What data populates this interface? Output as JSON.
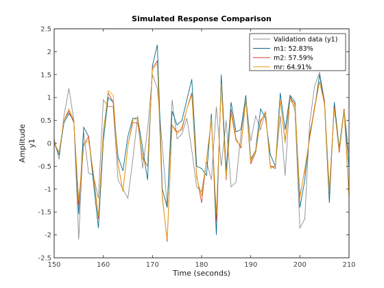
{
  "chart_data": {
    "type": "line",
    "title": "Simulated Response Comparison",
    "xlabel": "Time (seconds)",
    "ylabel": "Amplitude",
    "ylabel2": "y1",
    "xlim": [
      150,
      210
    ],
    "ylim": [
      -2.5,
      2.5
    ],
    "xticks": [
      "150",
      "160",
      "170",
      "180",
      "190",
      "200",
      "210"
    ],
    "yticks": [
      "2.5",
      "2",
      "1.5",
      "1",
      "0.5",
      "0",
      "-0.5",
      "-1",
      "-1.5",
      "-2",
      "-2.5"
    ],
    "grid": false,
    "legend_position": "top-right",
    "x": [
      150,
      151,
      152,
      153,
      154,
      155,
      156,
      157,
      158,
      159,
      160,
      161,
      162,
      163,
      164,
      165,
      166,
      167,
      168,
      169,
      170,
      171,
      172,
      173,
      174,
      175,
      176,
      177,
      178,
      179,
      180,
      181,
      182,
      183,
      184,
      185,
      186,
      187,
      188,
      189,
      190,
      191,
      192,
      193,
      194,
      195,
      196,
      197,
      198,
      199,
      200,
      201,
      202,
      203,
      204,
      205,
      206,
      207,
      208,
      209,
      210
    ],
    "series": [
      {
        "name": "Validation data (y1)",
        "color": "#8c8c8c",
        "values": [
          0.1,
          -0.35,
          0.6,
          1.2,
          0.5,
          -2.1,
          0.25,
          -0.65,
          -0.7,
          -1.2,
          0.95,
          0.8,
          0.8,
          -0.8,
          -1.0,
          -1.2,
          -0.35,
          0.6,
          -0.55,
          0.3,
          1.5,
          1.2,
          -0.05,
          -1.4,
          0.95,
          0.1,
          0.2,
          0.55,
          -0.15,
          -0.95,
          -1.05,
          -0.4,
          -0.8,
          0.8,
          -0.5,
          0.5,
          -0.95,
          -0.85,
          0.2,
          0.95,
          0.05,
          0.6,
          0.3,
          0.7,
          -0.5,
          -0.5,
          0.6,
          -0.7,
          1.05,
          0.7,
          -1.85,
          -1.65,
          0.45,
          1.25,
          1.55,
          0.95,
          -1.0,
          0.85,
          -0.2,
          0.7,
          -0.25
        ]
      },
      {
        "name": "m1: 52.83%",
        "color": "#00698c",
        "values": [
          0.0,
          -0.25,
          0.45,
          0.65,
          0.5,
          -1.55,
          0.35,
          0.15,
          -0.85,
          -1.85,
          0.05,
          1.0,
          0.9,
          -0.3,
          -0.6,
          0.15,
          0.55,
          0.55,
          -0.1,
          -0.8,
          1.7,
          2.15,
          -1.0,
          -1.4,
          0.7,
          0.4,
          0.5,
          0.95,
          1.4,
          -0.5,
          -0.55,
          -0.7,
          0.65,
          -2.0,
          1.5,
          -0.6,
          0.9,
          0.25,
          0.3,
          1.05,
          -0.35,
          -0.15,
          0.75,
          0.55,
          -0.25,
          -0.5,
          1.1,
          0.3,
          1.05,
          0.9,
          -1.4,
          -0.8,
          0.2,
          0.75,
          1.5,
          0.85,
          -1.3,
          0.9,
          -0.1,
          0.75,
          -0.55
        ]
      },
      {
        "name": "m2: 57.59%",
        "color": "#c8461e",
        "values": [
          0.0,
          -0.2,
          0.5,
          0.7,
          0.45,
          -1.35,
          -0.05,
          0.15,
          -0.7,
          -1.65,
          0.25,
          1.1,
          0.9,
          -0.45,
          -1.05,
          -0.05,
          0.45,
          0.45,
          -0.3,
          -0.5,
          1.65,
          1.8,
          -1.15,
          -2.15,
          0.4,
          0.25,
          0.3,
          0.75,
          1.1,
          -0.7,
          -1.3,
          -0.35,
          0.5,
          -1.7,
          1.3,
          -0.8,
          0.75,
          0.1,
          -0.1,
          0.95,
          -0.45,
          -0.2,
          0.5,
          0.65,
          -0.5,
          -0.55,
          0.95,
          0.05,
          1.0,
          0.85,
          -1.15,
          -0.6,
          0.15,
          0.8,
          1.35,
          0.9,
          -1.1,
          0.8,
          -0.2,
          0.75,
          -1.15
        ]
      },
      {
        "name": "mr: 64.91%",
        "color": "#e6a014",
        "values": [
          0.0,
          -0.2,
          0.5,
          0.75,
          0.5,
          -1.25,
          0.0,
          0.05,
          -0.65,
          -1.6,
          0.2,
          1.15,
          1.05,
          -0.45,
          -1.05,
          -0.05,
          0.5,
          0.55,
          -0.35,
          -0.5,
          1.6,
          1.75,
          -1.2,
          -2.1,
          0.4,
          0.2,
          0.35,
          0.75,
          1.05,
          -0.75,
          -1.15,
          -0.35,
          0.55,
          -1.55,
          1.3,
          -0.75,
          0.65,
          0.05,
          -0.05,
          0.95,
          -0.4,
          -0.15,
          0.45,
          0.7,
          -0.55,
          -0.5,
          0.95,
          0.0,
          0.95,
          0.8,
          -1.2,
          -0.55,
          0.1,
          0.75,
          1.35,
          0.85,
          -1.05,
          0.75,
          -0.15,
          0.7,
          -1.2
        ]
      }
    ]
  }
}
